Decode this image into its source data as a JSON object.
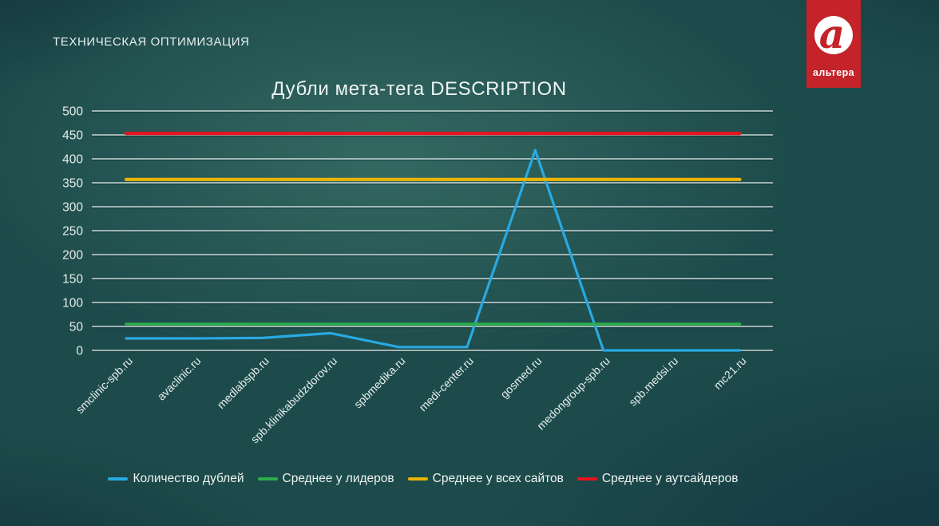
{
  "slide": {
    "header": "ТЕХНИЧЕСКАЯ ОПТИМИЗАЦИЯ",
    "logo": {
      "letter": "a",
      "brand": "альтера",
      "bg_color": "#c4232a",
      "circle_color": "#ffffff"
    }
  },
  "chart_data": {
    "type": "line",
    "title": "Дубли мета-тега DESCRIPTION",
    "categories": [
      "smclinic-spb.ru",
      "avaclinic.ru",
      "medlabspb.ru",
      "spb.klinikabudzdorov.ru",
      "spbmedika.ru",
      "medi-center.ru",
      "gosmed.ru",
      "medongroup-spb.ru",
      "spb.medsi.ru",
      "mc21.ru"
    ],
    "series": [
      {
        "name": "Количество дублей",
        "color": "#29a9e1",
        "values": [
          25,
          25,
          26,
          36,
          7,
          7,
          418,
          0,
          0,
          0
        ]
      },
      {
        "name": "Среднее у лидеров",
        "color": "#2bae4a",
        "constant": 55
      },
      {
        "name": "Среднее у всех сайтов",
        "color": "#ecb400",
        "constant": 357
      },
      {
        "name": "Среднее у аутсайдеров",
        "color": "#e8131d",
        "constant": 453
      }
    ],
    "ylim": [
      0,
      500
    ],
    "yticks": [
      0,
      50,
      100,
      150,
      200,
      250,
      300,
      350,
      400,
      450,
      500
    ],
    "grid": "horizontal",
    "gridline_color": "#d7e1e0",
    "axis_text_color": "#e6eeec",
    "legend_position": "bottom"
  }
}
